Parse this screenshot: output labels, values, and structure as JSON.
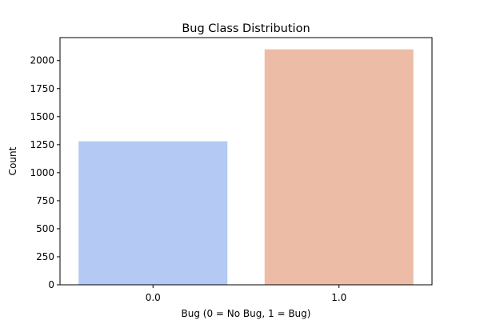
{
  "chart_data": {
    "type": "bar",
    "title": "Bug Class Distribution",
    "xlabel": "Bug (0 = No Bug, 1 = Bug)",
    "ylabel": "Count",
    "categories": [
      "0.0",
      "1.0"
    ],
    "values": [
      1280,
      2100
    ],
    "ylim": [
      0,
      2205
    ],
    "yticks": [
      0,
      250,
      500,
      750,
      1000,
      1250,
      1500,
      1750,
      2000
    ],
    "colors": [
      "#b4c9f3",
      "#edbca7"
    ],
    "grid": false,
    "legend": "none"
  }
}
